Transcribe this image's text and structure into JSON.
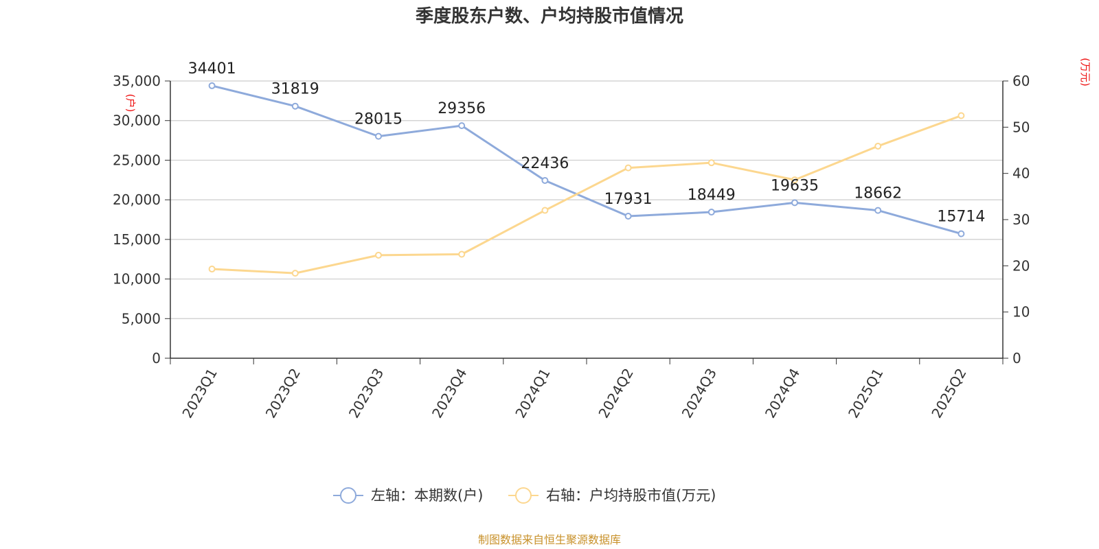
{
  "chart_data": {
    "type": "line",
    "title": "季度股东户数、户均持股市值情况",
    "categories": [
      "2023Q1",
      "2023Q2",
      "2023Q3",
      "2023Q4",
      "2024Q1",
      "2024Q2",
      "2024Q3",
      "2024Q4",
      "2025Q1",
      "2025Q2"
    ],
    "left_axis": {
      "unit": "(户)",
      "ylim": [
        0,
        35000
      ],
      "ticks": [
        "0",
        "5,000",
        "10,000",
        "15,000",
        "20,000",
        "25,000",
        "30,000",
        "35,000"
      ]
    },
    "right_axis": {
      "unit": "(万元)",
      "ylim": [
        0,
        60
      ],
      "ticks": [
        "0",
        "10",
        "20",
        "30",
        "40",
        "50",
        "60"
      ]
    },
    "series": [
      {
        "name": "左轴：本期数(户)",
        "axis": "left",
        "color": "#8eaadb",
        "values": [
          34401,
          31819,
          28015,
          29356,
          22436,
          17931,
          18449,
          19635,
          18662,
          15714
        ],
        "labels": [
          "34401",
          "31819",
          "28015",
          "29356",
          "22436",
          "17931",
          "18449",
          "19635",
          "18662",
          "15714"
        ]
      },
      {
        "name": "右轴：户均持股市值(万元)",
        "axis": "right",
        "color": "#fcd78f",
        "values": [
          19.3,
          18.4,
          22.3,
          22.5,
          32.0,
          41.2,
          42.3,
          38.6,
          45.9,
          52.5
        ]
      }
    ],
    "grid": true,
    "legend_position": "bottom"
  },
  "footer": {
    "source": "制图数据来自恒生聚源数据库"
  }
}
